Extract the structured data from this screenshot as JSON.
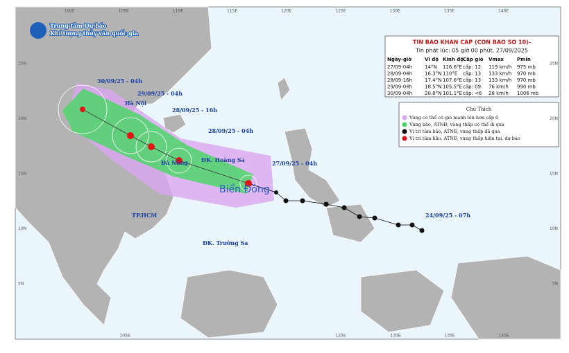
{
  "header": {
    "agency": [
      "Trung tâm Dự báo",
      "Khí tượng thủy văn quốc gia"
    ]
  },
  "bulletin": {
    "title": "TIN BAO KHAN CAP (CON BAO SO 10)-",
    "issued": "Tin phát lúc: 05 giờ 00 phút, 27/09/2025",
    "columns": [
      "Ngày-giờ",
      "Vĩ độ",
      "Kinh độ",
      "Cấp gió",
      "Vmax",
      "Pmin"
    ],
    "rows": [
      [
        "27/09-04h",
        "14°N",
        "116.6°E",
        "cấp: 12",
        "119 km/h",
        "975 mb"
      ],
      [
        "28/09-04h",
        "16.3°N",
        "110°E",
        "cấp: 13",
        "133 km/h",
        "970 mb"
      ],
      [
        "28/09-16h",
        "17.4°N",
        "107.6°E",
        "cấp: 13",
        "133 km/h",
        "970 mb"
      ],
      [
        "29/09-04h",
        "18.5°N",
        "105.5°E",
        "cấp: 09",
        "76 km/h",
        "990 mb"
      ],
      [
        "30/09-04h",
        "20.8°N",
        "101.1°E",
        "cấp: <6",
        "28 km/h",
        "1006 mb"
      ]
    ]
  },
  "legend": {
    "title": "Chú Thích",
    "items": [
      "Vùng có thể có gió mạnh lên hơn cấp 6",
      "Vùng bão, ATNĐ, vùng thấp có thể đi qua",
      "Vị trí tâm bão, ATNĐ, vùng thấp đã qua",
      "Vị trí tâm bão, ATNĐ, vùng thấp hiện tại, dự báo"
    ]
  },
  "map": {
    "track_labels": [
      "30/09/25 - 04h",
      "29/09/25 - 04h",
      "28/09/25 - 16h",
      "28/09/25 - 04h",
      "27/09/25 - 04h",
      "24/09/25 - 07h"
    ],
    "places": [
      "Hà Nội",
      "Đà Nẵng",
      "ĐK. Hoàng Sa",
      "TP.HCM",
      "ĐK. Trường Sa"
    ],
    "sea": "Biển Đông",
    "lon_ticks_top": [
      "100E",
      "105E",
      "110E",
      "115E",
      "120E",
      "125E",
      "130E",
      "135E",
      "140E"
    ],
    "lon_ticks_bottom": [
      "105E",
      "125E",
      "130E",
      "135E",
      "140E"
    ],
    "lat_ticks_left": [
      "25N",
      "20N",
      "15N",
      "10N",
      "5N"
    ],
    "lat_ticks_right": [
      "25N",
      "20N",
      "15N",
      "10N",
      "5N"
    ]
  }
}
